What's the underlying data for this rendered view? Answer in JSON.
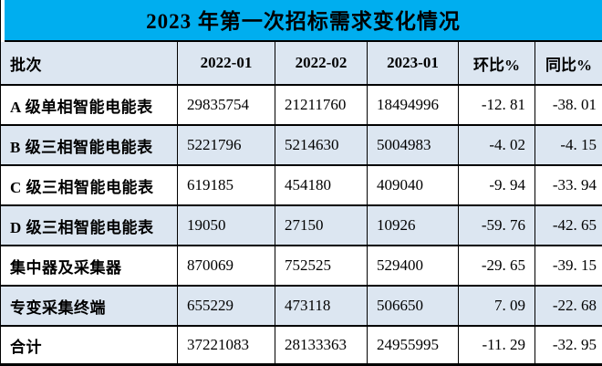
{
  "title": "2023 年第一次招标需求变化情况",
  "colors": {
    "title_bg": "#00AEEF",
    "band_bg": "#DCE6F1",
    "border": "#000000",
    "text": "#000000"
  },
  "table": {
    "columns": [
      "批次",
      "2022-01",
      "2022-02",
      "2023-01",
      "环比%",
      "同比%"
    ],
    "rows": [
      {
        "label": "A 级单相智能电能表",
        "values": [
          "29835754",
          "21211760",
          "18494996",
          "-12. 81",
          "-38. 01"
        ]
      },
      {
        "label": "B 级三相智能电能表",
        "values": [
          "5221796",
          "5214630",
          "5004983",
          "-4. 02",
          "-4. 15"
        ]
      },
      {
        "label": "C 级三相智能电能表",
        "values": [
          "619185",
          "454180",
          "409040",
          "-9. 94",
          "-33. 94"
        ]
      },
      {
        "label": "D 级三相智能电能表",
        "values": [
          "19050",
          "27150",
          "10926",
          "-59. 76",
          "-42. 65"
        ]
      },
      {
        "label": "集中器及采集器",
        "values": [
          "870069",
          "752525",
          "529400",
          "-29. 65",
          "-39. 15"
        ]
      },
      {
        "label": "专变采集终端",
        "values": [
          "655229",
          "473118",
          "506650",
          "7. 09",
          "-22. 68"
        ]
      },
      {
        "label": "合计",
        "values": [
          "37221083",
          "28133363",
          "24955995",
          "-11. 29",
          "-32. 95"
        ]
      }
    ]
  },
  "chart_data": {
    "type": "table",
    "title": "2023 年第一次招标需求变化情况",
    "columns": [
      "批次",
      "2022-01",
      "2022-02",
      "2023-01",
      "环比%",
      "同比%"
    ],
    "rows": [
      [
        "A 级单相智能电能表",
        29835754,
        21211760,
        18494996,
        -12.81,
        -38.01
      ],
      [
        "B 级三相智能电能表",
        5221796,
        5214630,
        5004983,
        -4.02,
        -4.15
      ],
      [
        "C 级三相智能电能表",
        619185,
        454180,
        409040,
        -9.94,
        -33.94
      ],
      [
        "D 级三相智能电能表",
        19050,
        27150,
        10926,
        -59.76,
        -42.65
      ],
      [
        "集中器及采集器",
        870069,
        752525,
        529400,
        -29.65,
        -39.15
      ],
      [
        "专变采集终端",
        655229,
        473118,
        506650,
        7.09,
        -22.68
      ],
      [
        "合计",
        37221083,
        28133363,
        24955995,
        -11.29,
        -32.95
      ]
    ]
  }
}
